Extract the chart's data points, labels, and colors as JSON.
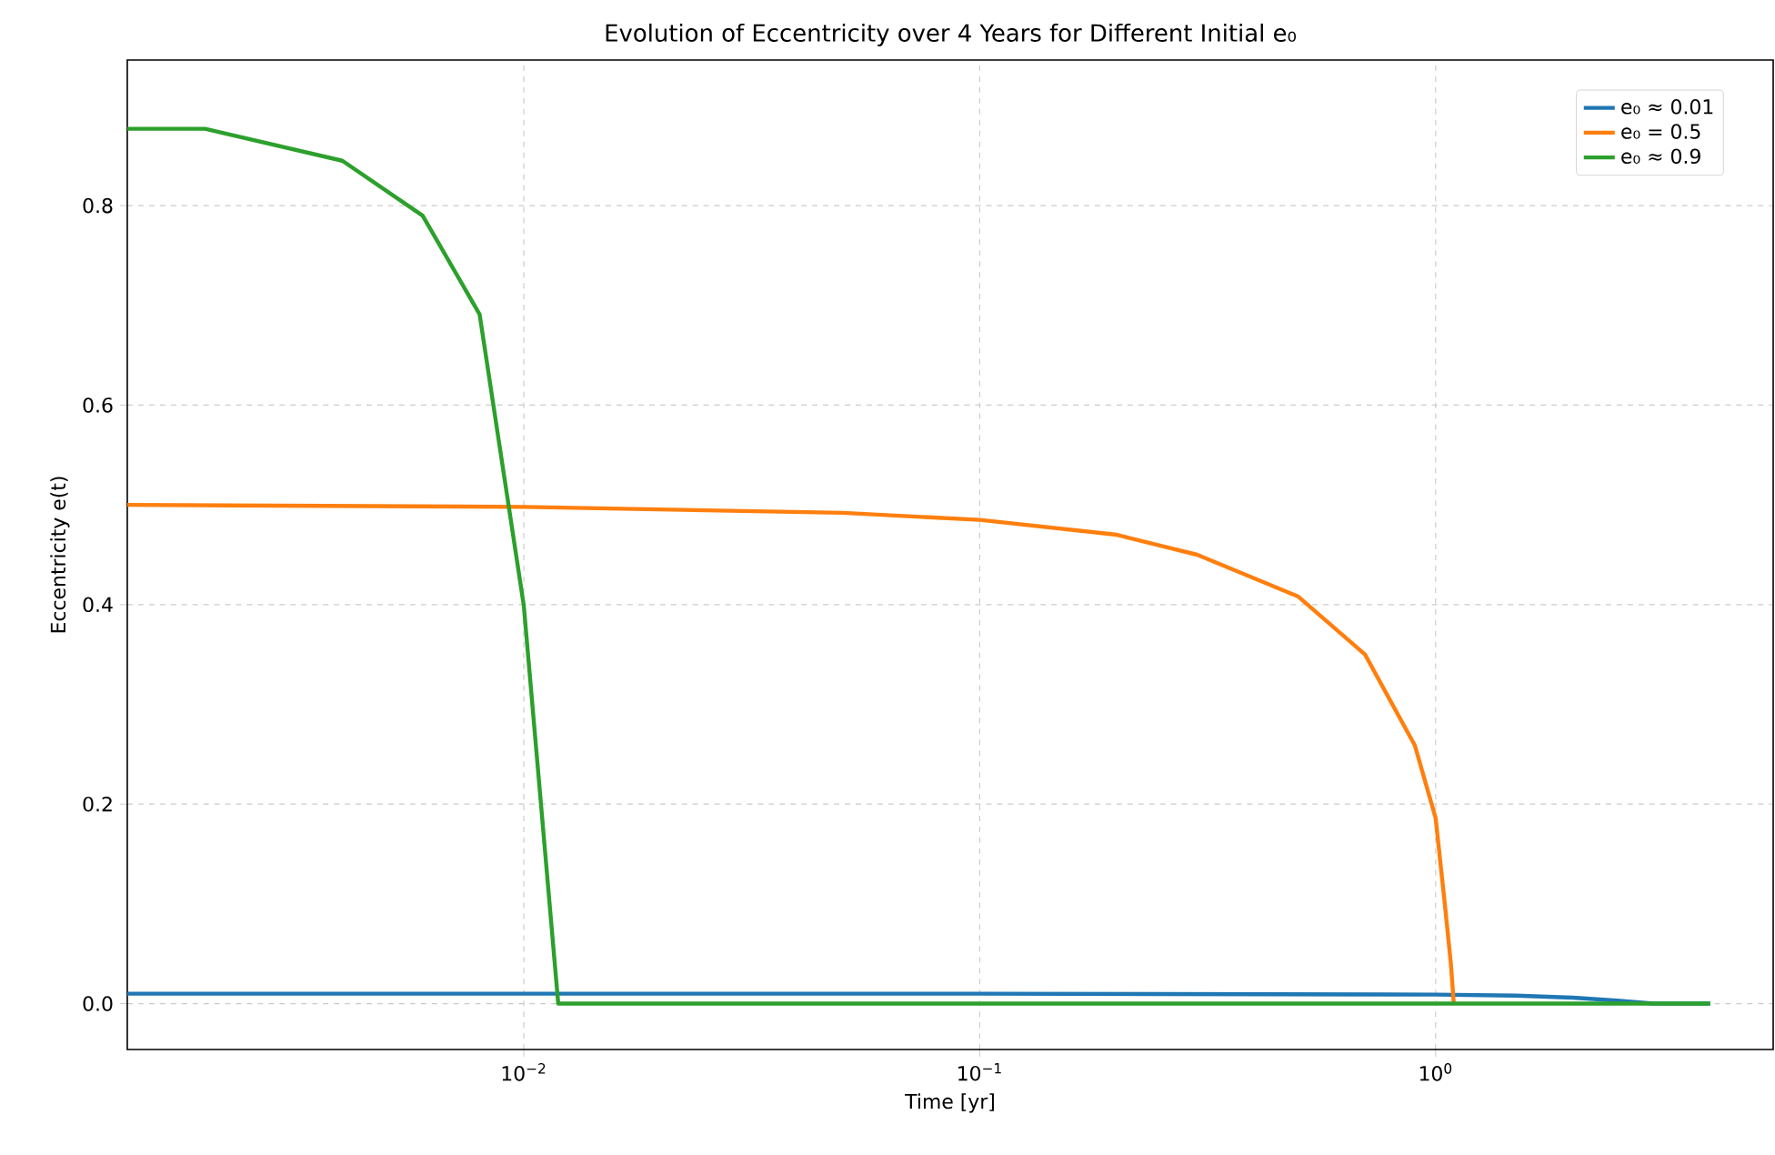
{
  "chart_data": {
    "type": "line",
    "title": "Evolution of Eccentricity over 4 Years for Different Initial e₀",
    "xlabel": "Time [yr]",
    "ylabel": "Eccentricity e(t)",
    "log": "x",
    "grid": true,
    "legend": "top right",
    "marker": "none",
    "line_style": "solid",
    "xlim": [
      0.00135,
      5.5
    ],
    "xticks": [
      {
        "value": 0.01,
        "label": "10$^{−2}$"
      },
      {
        "value": 0.1,
        "label": "10$^{−1}$"
      },
      {
        "value": 1,
        "label": "10$^{0}$"
      }
    ],
    "ylim": [
      -0.046,
      0.946
    ],
    "yticks": [
      {
        "value": 0,
        "label": "0.0"
      },
      {
        "value": 0.2,
        "label": "0.2"
      },
      {
        "value": 0.4,
        "label": "0.4"
      },
      {
        "value": 0.6,
        "label": "0.6"
      },
      {
        "value": 0.8,
        "label": "0.8"
      }
    ],
    "series": [
      {
        "name": "e₀ ≈ 0.01",
        "color": "#1f77b4",
        "x": [
          0.00135,
          0.01,
          0.1,
          1.0,
          1.5,
          2.0,
          2.5,
          3.0,
          4.0
        ],
        "values": [
          0.01,
          0.01,
          0.01,
          0.009,
          0.008,
          0.006,
          0.003,
          0.0,
          0.0
        ]
      },
      {
        "name": "e₀ = 0.5",
        "color": "#ff7f0e",
        "x": [
          0.00135,
          0.01,
          0.05,
          0.1,
          0.2,
          0.3,
          0.5,
          0.7,
          0.9,
          1.0,
          1.05,
          1.08,
          1.096
        ],
        "values": [
          0.5,
          0.498,
          0.492,
          0.485,
          0.47,
          0.45,
          0.408,
          0.35,
          0.259,
          0.186,
          0.095,
          0.04,
          0.0
        ]
      },
      {
        "name": "e₀ ≈ 0.9",
        "color": "#2ca02c",
        "x": [
          0.00135,
          0.002,
          0.004,
          0.006,
          0.008,
          0.01,
          0.0119,
          4.0
        ],
        "values": [
          0.877,
          0.877,
          0.845,
          0.79,
          0.691,
          0.399,
          0.0,
          0.0
        ]
      }
    ]
  }
}
